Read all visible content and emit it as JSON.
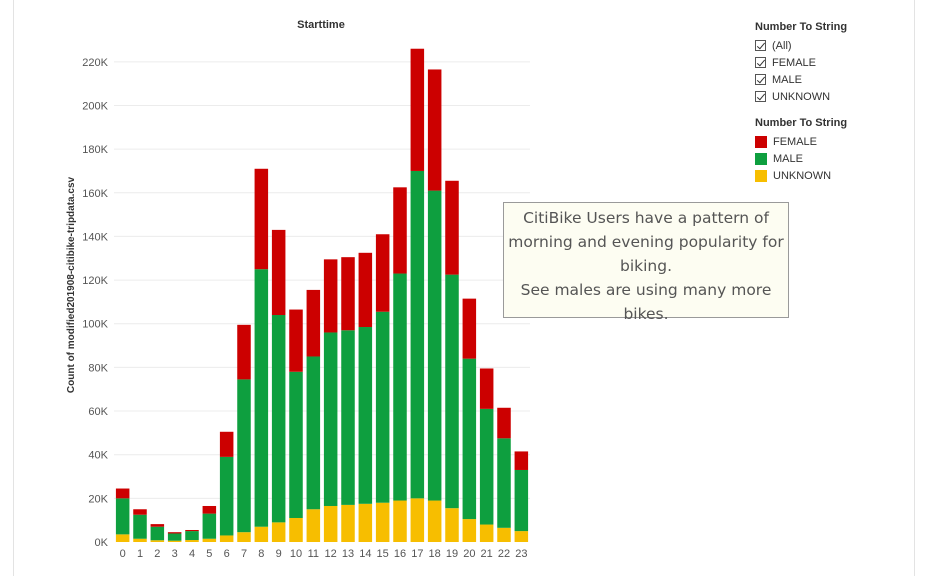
{
  "filter_legend": {
    "title": "Number To String",
    "items": [
      "(All)",
      "FEMALE",
      "MALE",
      "UNKNOWN"
    ]
  },
  "color_legend": {
    "title": "Number To String",
    "items": [
      {
        "label": "FEMALE",
        "color": "#cc0000"
      },
      {
        "label": "MALE",
        "color": "#0e9f3f"
      },
      {
        "label": "UNKNOWN",
        "color": "#f7be00"
      }
    ]
  },
  "annotation": {
    "lines": [
      "CitiBike Users have a pattern of",
      "morning and evening popularity for",
      "biking.",
      "See males are using many more",
      "bikes."
    ]
  },
  "chart_data": {
    "type": "bar",
    "stacked": true,
    "title": "Starttime",
    "xlabel": "",
    "ylabel": "Count of modified201908-citibike-tripdata.csv",
    "ylim": [
      0,
      230000
    ],
    "yticks": [
      0,
      20000,
      40000,
      60000,
      80000,
      100000,
      120000,
      140000,
      160000,
      180000,
      200000,
      220000
    ],
    "ytick_labels": [
      "0K",
      "20K",
      "40K",
      "60K",
      "80K",
      "100K",
      "120K",
      "140K",
      "160K",
      "180K",
      "200K",
      "220K"
    ],
    "grid": true,
    "legend": "right",
    "categories": [
      "0",
      "1",
      "2",
      "3",
      "4",
      "5",
      "6",
      "7",
      "8",
      "9",
      "10",
      "11",
      "12",
      "13",
      "14",
      "15",
      "16",
      "17",
      "18",
      "19",
      "20",
      "21",
      "22",
      "23"
    ],
    "series": [
      {
        "name": "UNKNOWN",
        "color": "#f7be00",
        "values": [
          3500,
          1500,
          800,
          600,
          900,
          1500,
          3000,
          4500,
          7000,
          9000,
          11000,
          15000,
          16500,
          17000,
          17500,
          18000,
          19000,
          20000,
          19000,
          15500,
          10500,
          8000,
          6500,
          5000
        ]
      },
      {
        "name": "MALE",
        "color": "#0e9f3f",
        "values": [
          16500,
          11000,
          6200,
          3300,
          4100,
          11500,
          36000,
          70000,
          118000,
          95000,
          67000,
          70000,
          79500,
          80000,
          81000,
          87500,
          104000,
          150000,
          142000,
          107000,
          73500,
          53000,
          41000,
          28000
        ]
      },
      {
        "name": "FEMALE",
        "color": "#cc0000",
        "values": [
          4500,
          2500,
          1200,
          600,
          500,
          3500,
          11500,
          25000,
          46000,
          39000,
          28500,
          30500,
          33500,
          33500,
          34000,
          35500,
          39500,
          56000,
          55500,
          43000,
          27500,
          18500,
          14000,
          8500
        ]
      }
    ]
  }
}
